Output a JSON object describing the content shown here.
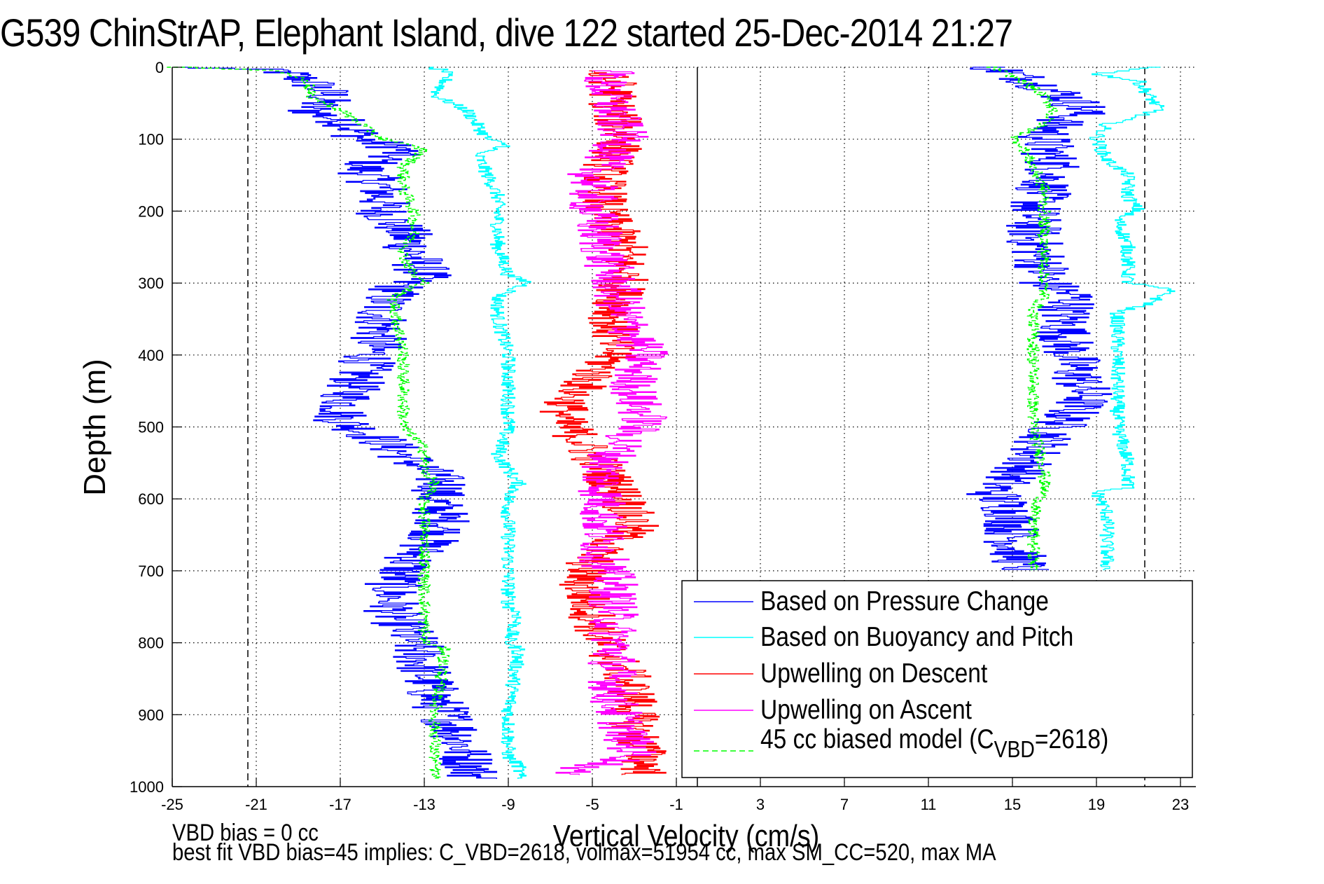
{
  "chart_data": {
    "type": "line",
    "title": "G539 ChinStrAP, Elephant Island, dive 122 started 25-Dec-2014 21:27",
    "xlabel": "Vertical Velocity (cm/s)",
    "ylabel": "Depth (m)",
    "xlim": [
      -25,
      24
    ],
    "ylim": [
      0,
      1000
    ],
    "y_reversed": true,
    "xticks": [
      -25,
      -21,
      -17,
      -13,
      -9,
      -5,
      -1,
      3,
      7,
      11,
      15,
      19,
      23
    ],
    "yticks": [
      0,
      100,
      200,
      300,
      400,
      500,
      600,
      700,
      800,
      900,
      1000
    ],
    "grid": true,
    "legend_position": "bottom-right",
    "reference_lines": [
      {
        "name": "zero-line",
        "x": 0,
        "style": "solid"
      },
      {
        "name": "descent-limit-line",
        "x": -21.4,
        "style": "dashed"
      },
      {
        "name": "ascent-limit-line",
        "x": 21.3,
        "style": "dashed"
      }
    ],
    "series": [
      {
        "name": "Based on Pressure Change",
        "color": "#0000ff",
        "style": "solid",
        "noise": 1.4,
        "descent": {
          "depth": [
            0,
            5,
            20,
            40,
            60,
            80,
            100,
            115,
            140,
            170,
            200,
            230,
            260,
            290,
            300,
            330,
            360,
            400,
            450,
            490,
            520,
            560,
            580,
            600,
            640,
            680,
            720,
            760,
            800,
            840,
            880,
            920,
            960,
            990
          ],
          "velocity": [
            -25,
            -20,
            -18.5,
            -17.5,
            -18.5,
            -16.5,
            -16,
            -14,
            -16,
            -15,
            -15,
            -14,
            -13.5,
            -13,
            -14,
            -15,
            -15,
            -15.5,
            -16.5,
            -17,
            -15,
            -13,
            -12,
            -12.5,
            -12,
            -13.5,
            -14.5,
            -14.5,
            -13.5,
            -13,
            -12.5,
            -11.5,
            -11,
            -10.5
          ]
        },
        "ascent": {
          "depth": [
            0,
            20,
            40,
            60,
            80,
            100,
            140,
            170,
            200,
            240,
            280,
            300,
            320,
            340,
            380,
            420,
            460,
            490,
            520,
            560,
            590,
            620,
            660,
            700
          ],
          "velocity": [
            14,
            16,
            17.5,
            18.5,
            17,
            16.5,
            17,
            16.5,
            16,
            16,
            16.5,
            16.5,
            18,
            17.5,
            17.5,
            18,
            18.5,
            17.5,
            16.5,
            15.5,
            14,
            15,
            15,
            15.5
          ]
        }
      },
      {
        "name": "Based on Buoyancy and Pitch",
        "color": "#00ffff",
        "style": "solid",
        "noise": 0.35,
        "descent": {
          "depth": [
            0,
            5,
            20,
            40,
            60,
            80,
            100,
            110,
            120,
            150,
            180,
            200,
            250,
            290,
            300,
            320,
            350,
            400,
            450,
            500,
            540,
            560,
            580,
            600,
            700,
            750,
            760,
            800,
            810,
            900,
            960,
            970,
            990
          ],
          "velocity": [
            -13,
            -12,
            -12,
            -12.5,
            -11,
            -10.5,
            -10,
            -9,
            -10.5,
            -10,
            -9.5,
            -9.5,
            -9.5,
            -9,
            -8,
            -9.5,
            -9.5,
            -9,
            -9,
            -9,
            -9.5,
            -9,
            -8.5,
            -9,
            -9,
            -9,
            -8.5,
            -9,
            -8.5,
            -9,
            -9,
            -8.5,
            -8.5
          ]
        },
        "ascent": {
          "depth": [
            0,
            10,
            20,
            40,
            60,
            80,
            100,
            130,
            150,
            180,
            200,
            210,
            250,
            300,
            310,
            330,
            340,
            400,
            450,
            500,
            550,
            585,
            590,
            620,
            660,
            700
          ],
          "velocity": [
            22,
            19,
            21,
            21.5,
            22,
            19.5,
            19,
            19.5,
            20.5,
            20.5,
            21,
            20,
            20.5,
            20.5,
            22.5,
            21.5,
            20,
            20,
            20,
            20,
            20.5,
            20.5,
            19,
            19.5,
            19.5,
            19.5
          ]
        }
      },
      {
        "name": "Upwelling on Descent",
        "color": "#ff0000",
        "style": "solid",
        "noise": 1.2,
        "descent": {
          "depth": [
            5,
            20,
            60,
            100,
            150,
            200,
            250,
            300,
            350,
            400,
            430,
            460,
            490,
            520,
            560,
            600,
            640,
            680,
            720,
            760,
            800,
            840,
            880,
            920,
            960,
            985
          ],
          "velocity": [
            -5,
            -4,
            -4,
            -3.5,
            -4.5,
            -4.5,
            -3.5,
            -3.5,
            -4,
            -4,
            -5,
            -6,
            -6.5,
            -5.5,
            -4.5,
            -3.5,
            -3,
            -5,
            -5.5,
            -5,
            -4.5,
            -3.5,
            -3,
            -3,
            -2.5,
            -2.5
          ]
        }
      },
      {
        "name": "Upwelling on Ascent",
        "color": "#ff00ff",
        "style": "solid",
        "noise": 1.2,
        "descent": {
          "depth": [
            5,
            20,
            60,
            100,
            150,
            200,
            250,
            300,
            350,
            400,
            430,
            460,
            490,
            520,
            560,
            600,
            640,
            680,
            720,
            760,
            800,
            840,
            880,
            920,
            960,
            985
          ],
          "velocity": [
            -4,
            -4.5,
            -4,
            -3.5,
            -5,
            -5,
            -4.5,
            -4,
            -3.5,
            -2.5,
            -3,
            -3,
            -2.5,
            -3.5,
            -4.5,
            -4.5,
            -4.5,
            -4.5,
            -4,
            -4,
            -4,
            -4,
            -4,
            -3.5,
            -3,
            -7
          ]
        }
      },
      {
        "name": "45 cc biased model (C_VBD=2618)",
        "color": "#00ff00",
        "style": "dashed",
        "noise": 0.3,
        "descent": {
          "depth": [
            0,
            5,
            20,
            40,
            60,
            80,
            100,
            115,
            140,
            170,
            200,
            230,
            260,
            290,
            300,
            320,
            400,
            500,
            530,
            560,
            580,
            600,
            700,
            750,
            800,
            810,
            900,
            960,
            990
          ],
          "velocity": [
            -25,
            -20,
            -18.5,
            -18.5,
            -17,
            -16,
            -15,
            -13,
            -14,
            -14,
            -13.5,
            -13.5,
            -14,
            -13.5,
            -13,
            -14.5,
            -14,
            -14,
            -13,
            -13,
            -12.5,
            -13,
            -13,
            -13,
            -13,
            -12,
            -12.5,
            -12.5,
            -12.5
          ]
        },
        "ascent": {
          "depth": [
            0,
            20,
            40,
            60,
            80,
            100,
            110,
            140,
            170,
            200,
            240,
            280,
            300,
            320,
            340,
            400,
            450,
            500,
            560,
            590,
            620,
            660,
            700
          ],
          "velocity": [
            14,
            15.5,
            16.5,
            17,
            16.5,
            15,
            15.5,
            16,
            16.5,
            16.5,
            16.5,
            16.5,
            16.5,
            16.5,
            16,
            16,
            16,
            16,
            16.5,
            16.5,
            16,
            16,
            16
          ]
        }
      }
    ],
    "legend": [
      {
        "label": "Based on Pressure Change",
        "color": "#0000ff",
        "style": "solid"
      },
      {
        "label": "Based on Buoyancy and Pitch",
        "color": "#00ffff",
        "style": "solid"
      },
      {
        "label": "Upwelling on Descent",
        "color": "#ff0000",
        "style": "solid"
      },
      {
        "label": "Upwelling on Ascent",
        "color": "#ff00ff",
        "style": "solid"
      },
      {
        "label_main": "45 cc biased model (C",
        "label_sub": "VBD",
        "label_tail": "=2618)",
        "color": "#00ff00",
        "style": "dashed"
      }
    ]
  },
  "footer": {
    "line1": "VBD bias = 0 cc",
    "line2": "best fit VBD bias=45 implies: C_VBD=2618, volmax=51954 cc, max SM_CC=520, max MA"
  }
}
